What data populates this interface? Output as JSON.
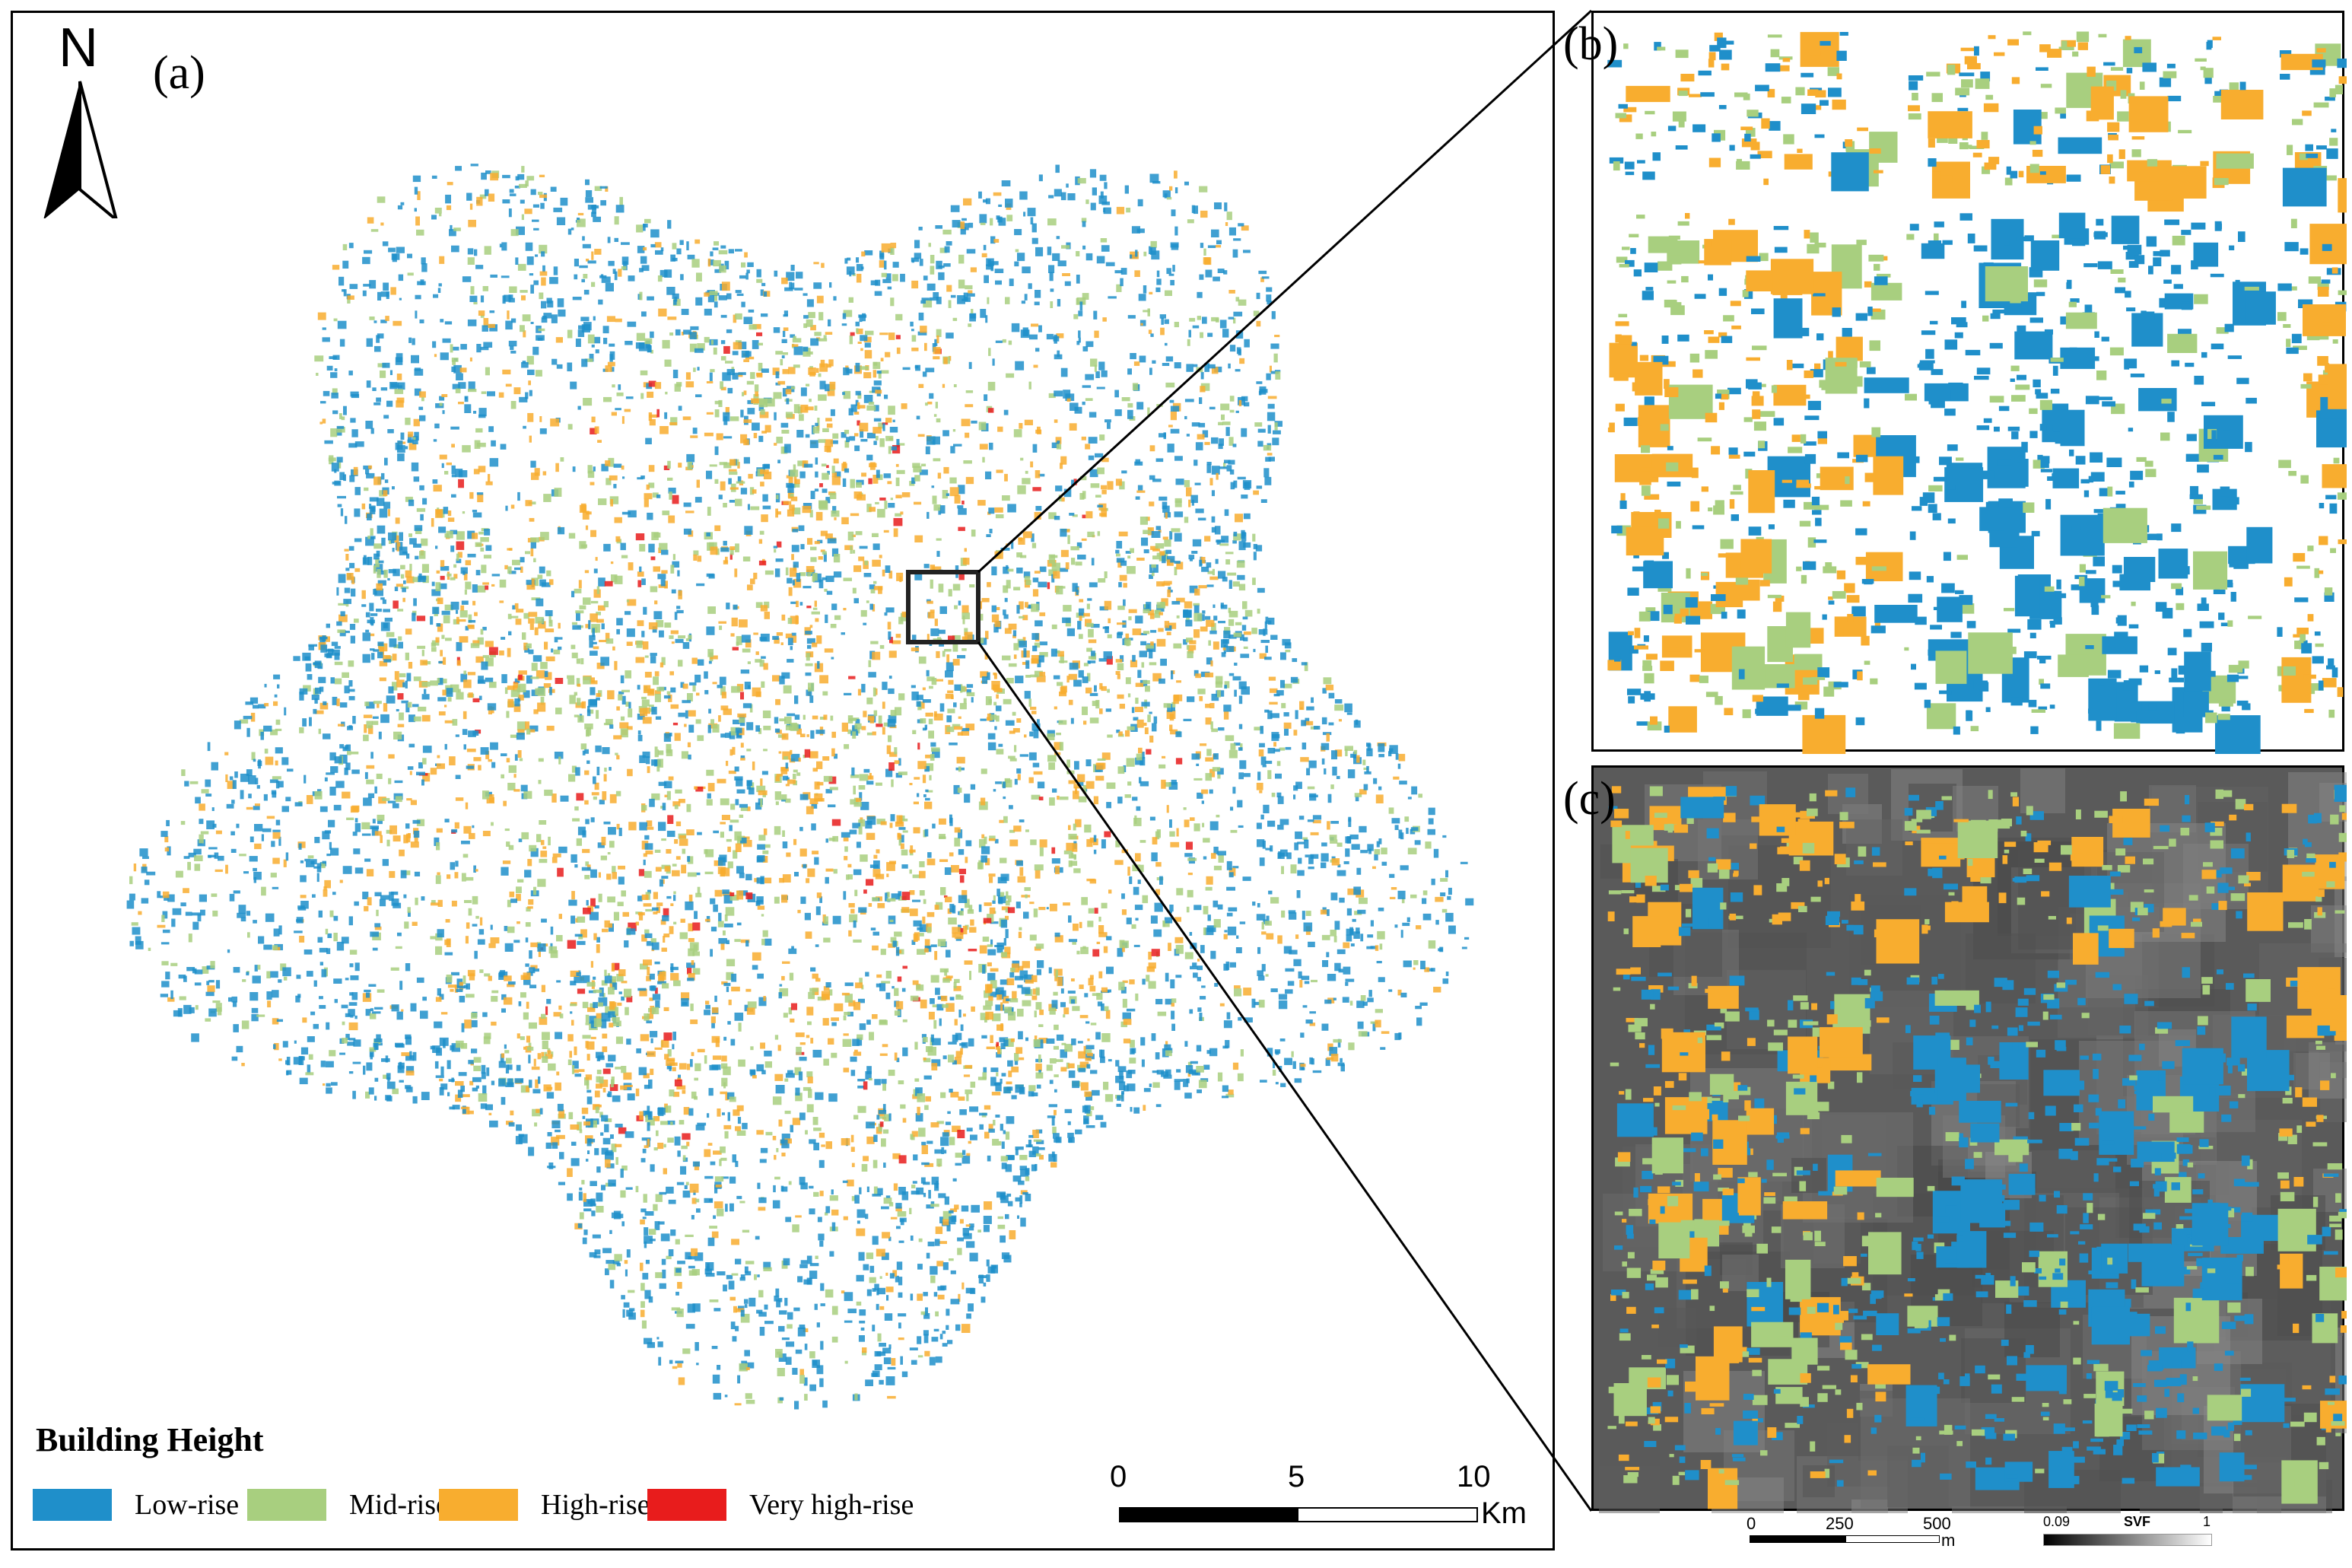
{
  "panels": {
    "a_label": "(a)",
    "b_label": "(b)",
    "c_label": "(c)"
  },
  "north_arrow": {
    "label": "N",
    "icon": "north-arrow-icon"
  },
  "legend": {
    "title": "Building Height",
    "items": [
      {
        "label": "Low-rise",
        "color": "#1f8fca"
      },
      {
        "label": "Mid-rise",
        "color": "#a8cf7f"
      },
      {
        "label": "High-rise",
        "color": "#f8ad2f"
      },
      {
        "label": "Very high-rise",
        "color": "#e81c1c"
      }
    ]
  },
  "scale_bar_main": {
    "ticks": [
      "0",
      "5",
      "10"
    ],
    "unit": "Km"
  },
  "scale_bar_inset": {
    "ticks": [
      "0",
      "250",
      "500"
    ],
    "unit": "m"
  },
  "svf_bar": {
    "min": "0.09",
    "label": "SVF",
    "max": "1"
  }
}
